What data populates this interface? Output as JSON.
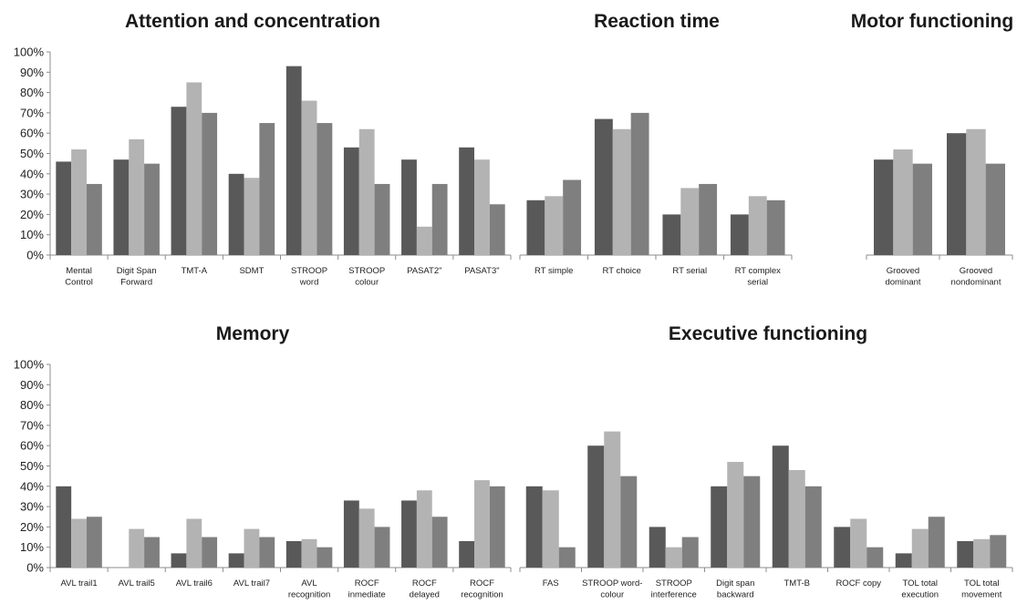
{
  "colors": [
    "#595959",
    "#b3b3b3",
    "#7f7f7f"
  ],
  "y_ticks": [
    "0%",
    "10%",
    "20%",
    "30%",
    "40%",
    "50%",
    "60%",
    "70%",
    "80%",
    "90%",
    "100%"
  ],
  "chart_data": [
    {
      "type": "bar",
      "title": "Attention and concentration",
      "ylim": [
        0,
        100
      ],
      "categories": [
        [
          "Mental",
          "Control"
        ],
        [
          "Digit Span",
          "Forward"
        ],
        [
          "TMT-A"
        ],
        [
          "SDMT"
        ],
        [
          "STROOP",
          "word"
        ],
        [
          "STROOP",
          "colour"
        ],
        [
          "PASAT2\""
        ],
        [
          "PASAT3\""
        ]
      ],
      "series": [
        {
          "values": [
            46,
            47,
            73,
            40,
            93,
            53,
            47,
            53
          ]
        },
        {
          "values": [
            52,
            57,
            85,
            38,
            76,
            62,
            14,
            47
          ]
        },
        {
          "values": [
            35,
            45,
            70,
            65,
            65,
            35,
            35,
            25
          ]
        }
      ]
    },
    {
      "type": "bar",
      "title": "Reaction time",
      "ylim": [
        0,
        100
      ],
      "categories": [
        [
          "RT simple"
        ],
        [
          "RT choice"
        ],
        [
          "RT serial"
        ],
        [
          "RT complex",
          "serial"
        ]
      ],
      "series": [
        {
          "values": [
            27,
            67,
            20,
            20
          ]
        },
        {
          "values": [
            29,
            62,
            33,
            29
          ]
        },
        {
          "values": [
            37,
            70,
            35,
            27
          ]
        }
      ]
    },
    {
      "type": "bar",
      "title": "Motor functioning",
      "ylim": [
        0,
        100
      ],
      "categories": [
        [
          "Grooved",
          "dominant"
        ],
        [
          "Grooved",
          "nondominant"
        ]
      ],
      "series": [
        {
          "values": [
            47,
            60
          ]
        },
        {
          "values": [
            52,
            62
          ]
        },
        {
          "values": [
            45,
            45
          ]
        }
      ]
    },
    {
      "type": "bar",
      "title": "Memory",
      "ylim": [
        0,
        100
      ],
      "categories": [
        [
          "AVL trail1"
        ],
        [
          "AVL trail5"
        ],
        [
          "AVL trail6"
        ],
        [
          "AVL trail7"
        ],
        [
          "AVL",
          "recognition"
        ],
        [
          "ROCF",
          "inmediate"
        ],
        [
          "ROCF",
          "delayed"
        ],
        [
          "ROCF",
          "recognition"
        ]
      ],
      "series": [
        {
          "values": [
            40,
            0,
            7,
            7,
            13,
            33,
            33,
            13
          ]
        },
        {
          "values": [
            24,
            19,
            24,
            19,
            14,
            29,
            38,
            43
          ]
        },
        {
          "values": [
            25,
            15,
            15,
            15,
            10,
            20,
            25,
            40
          ]
        }
      ]
    },
    {
      "type": "bar",
      "title": "Executive functioning",
      "ylim": [
        0,
        100
      ],
      "categories": [
        [
          "FAS"
        ],
        [
          "STROOP word-",
          "colour"
        ],
        [
          "STROOP",
          "interference"
        ],
        [
          "Digit span",
          "backward"
        ],
        [
          "TMT-B"
        ],
        [
          "ROCF copy"
        ],
        [
          "TOL total",
          "execution"
        ],
        [
          "TOL total",
          "movement"
        ]
      ],
      "series": [
        {
          "values": [
            40,
            60,
            20,
            40,
            60,
            20,
            7,
            13
          ]
        },
        {
          "values": [
            38,
            67,
            10,
            52,
            48,
            24,
            19,
            14
          ]
        },
        {
          "values": [
            10,
            45,
            15,
            45,
            40,
            10,
            25,
            16
          ]
        }
      ]
    }
  ]
}
